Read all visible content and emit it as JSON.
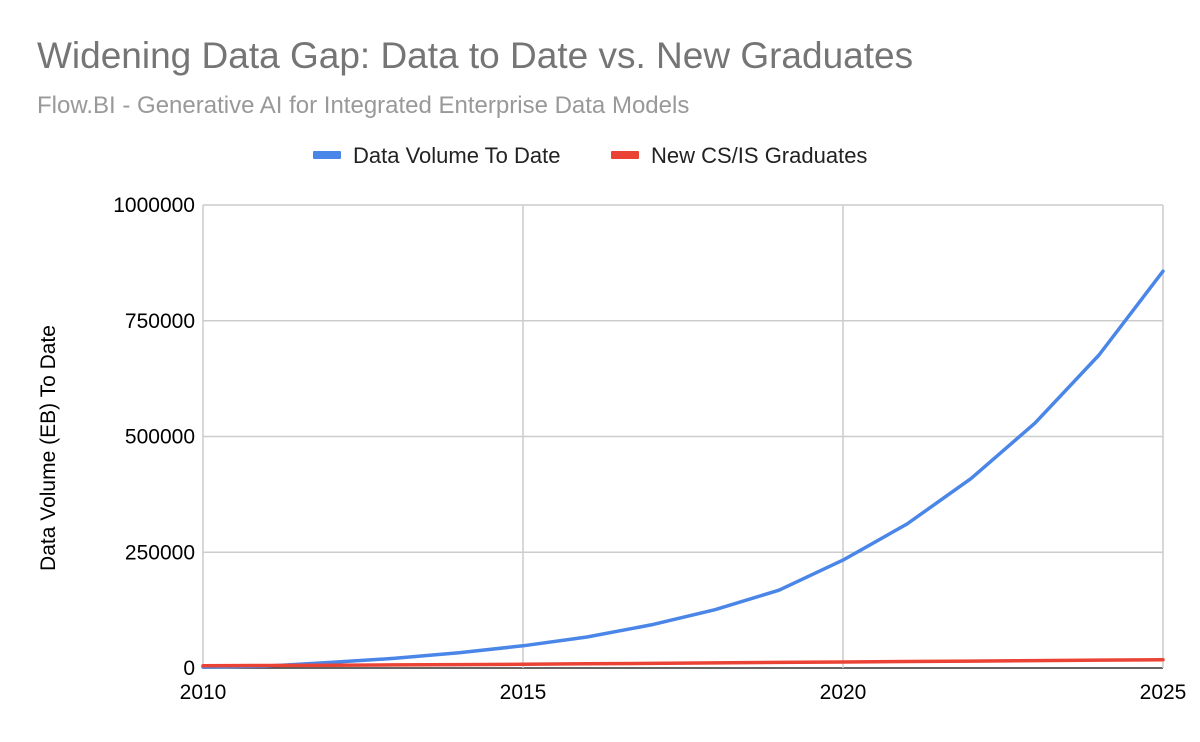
{
  "chart_data": {
    "type": "line",
    "title": "Widening Data Gap: Data to Date vs. New Graduates",
    "subtitle": "Flow.BI - Generative AI for Integrated Enterprise Data Models",
    "xlabel": "",
    "ylabel": "Data Volume (EB) To Date",
    "x": [
      2010,
      2011,
      2012,
      2013,
      2014,
      2015,
      2016,
      2017,
      2018,
      2019,
      2020,
      2021,
      2022,
      2023,
      2024,
      2025
    ],
    "xlim": [
      2010,
      2025
    ],
    "ylim": [
      0,
      1000000
    ],
    "x_ticks": [
      2010,
      2015,
      2020,
      2025
    ],
    "x_tick_labels": [
      "2010",
      "2015",
      "2020",
      "2025"
    ],
    "y_ticks": [
      0,
      250000,
      500000,
      750000,
      1000000
    ],
    "y_tick_labels": [
      "0",
      "250000",
      "500000",
      "750000",
      "1000000"
    ],
    "grid": true,
    "legend_position": "top-center",
    "series": [
      {
        "name": "Data Volume To Date",
        "color": "#4a86e8",
        "values": [
          2000,
          4000,
          12000,
          21000,
          33000,
          48000,
          67000,
          93000,
          126000,
          168000,
          233000,
          311000,
          409000,
          529000,
          676000,
          857000
        ]
      },
      {
        "name": "New CS/IS Graduates",
        "color": "#ea4335",
        "values": [
          5000,
          5400,
          6000,
          6600,
          7300,
          8000,
          9000,
          10000,
          11000,
          12000,
          13000,
          14000,
          15000,
          16000,
          17000,
          18000
        ]
      }
    ]
  }
}
